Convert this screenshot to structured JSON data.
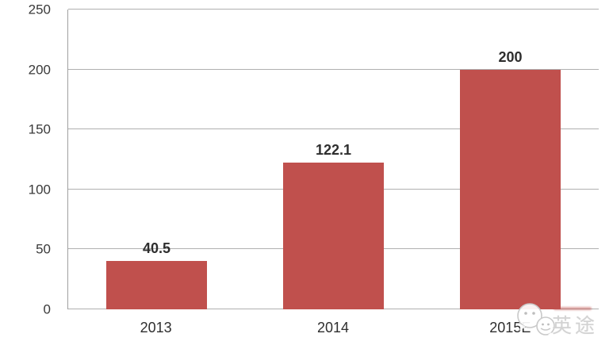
{
  "chart_data": {
    "type": "bar",
    "title": "",
    "xlabel": "",
    "ylabel": "",
    "categories": [
      "2013",
      "2014",
      "2015E"
    ],
    "values": [
      40.5,
      122.1,
      200
    ],
    "value_labels": [
      "40.5",
      "122.1",
      "200"
    ],
    "ylim": [
      0,
      250
    ],
    "yticks": [
      0,
      50,
      100,
      150,
      200,
      250
    ],
    "grid": "horizontal",
    "legend": "none",
    "bar_color": "#c0504d",
    "gridline_color": "#b0b0b0",
    "axis_text_color": "#3a3a3a"
  },
  "watermark": {
    "icon": "wechat-icon",
    "text": "英途"
  }
}
